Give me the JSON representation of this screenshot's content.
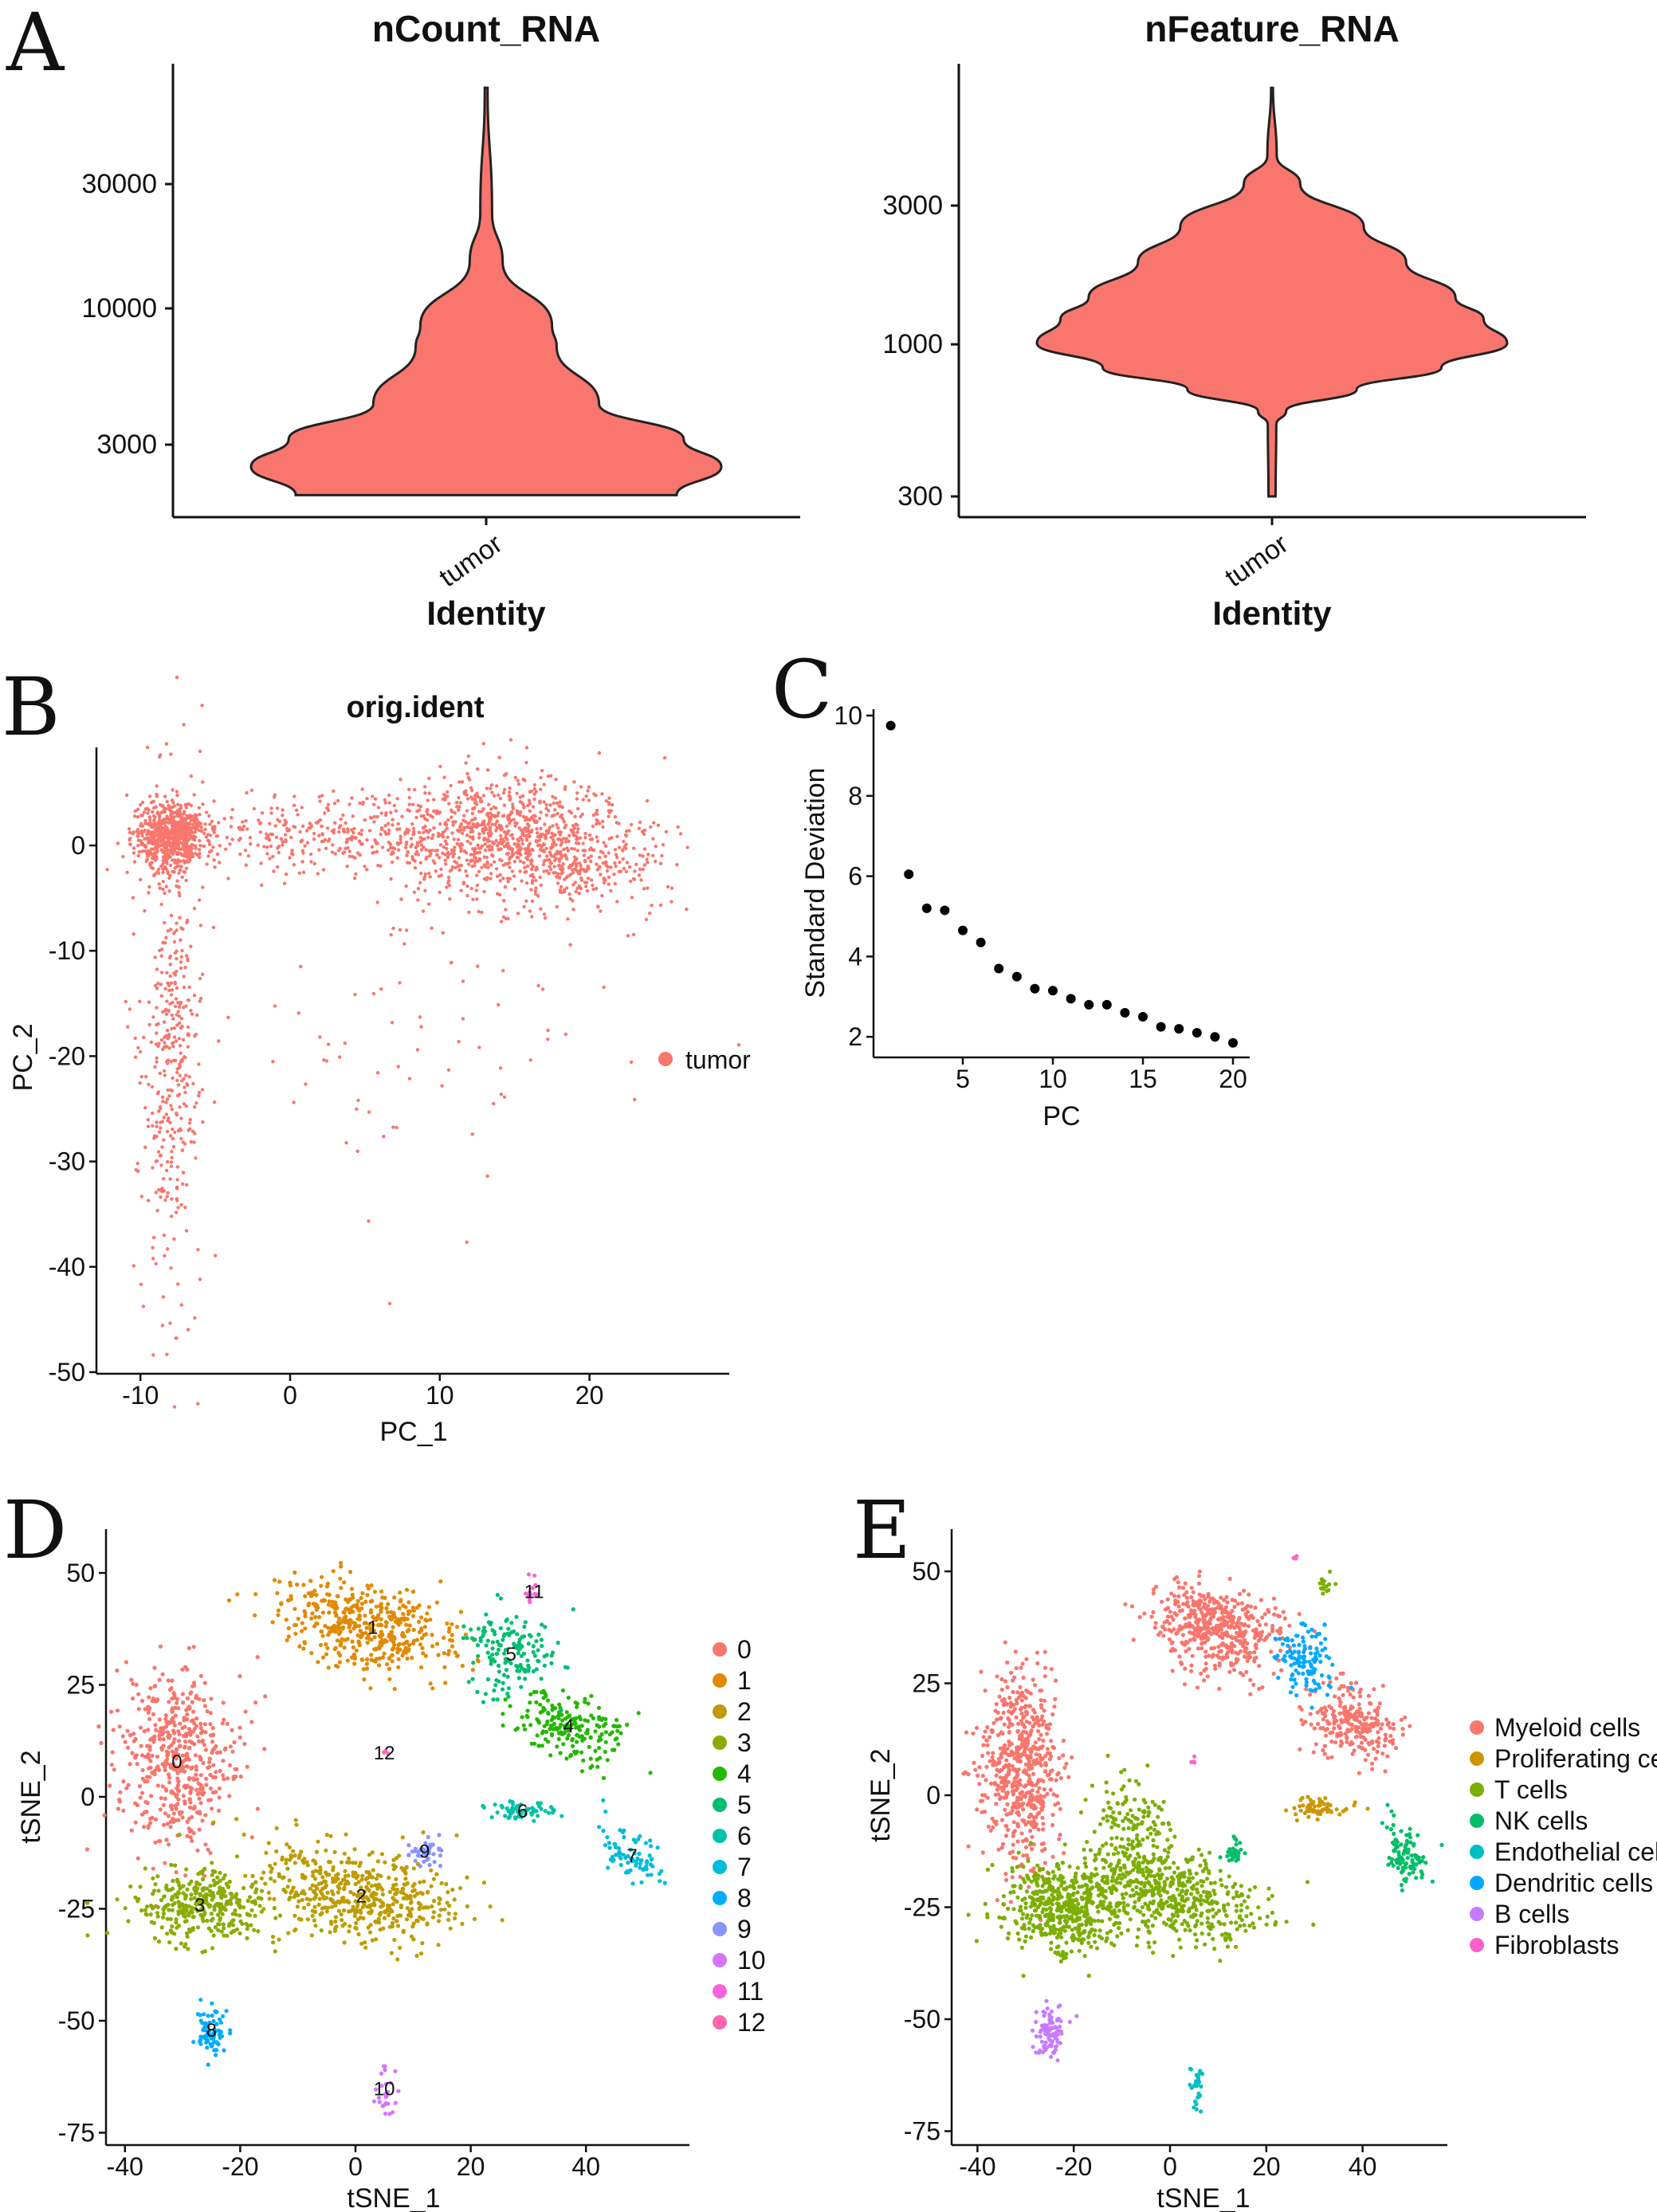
{
  "panels": [
    "A",
    "B",
    "C",
    "D",
    "E"
  ],
  "chart_data": [
    {
      "id": "A1",
      "type": "violin",
      "title": "nCount_RNA",
      "xlabel": "Identity",
      "categories": [
        "tumor"
      ],
      "yscale": "log",
      "yticks": [
        3000,
        10000,
        30000
      ],
      "ylim": [
        1920,
        70300
      ],
      "color": "#F8766D",
      "density": [
        [
          70300,
          0.006
        ],
        [
          23300,
          0.025
        ],
        [
          15100,
          0.07
        ],
        [
          8600,
          0.28
        ],
        [
          7100,
          0.3
        ],
        [
          4300,
          0.48
        ],
        [
          3150,
          0.84
        ],
        [
          2470,
          1.0
        ],
        [
          1920,
          0.81
        ]
      ]
    },
    {
      "id": "A2",
      "type": "violin",
      "title": "nFeature_RNA",
      "xlabel": "Identity",
      "categories": [
        "tumor"
      ],
      "yscale": "log",
      "yticks": [
        300,
        1000,
        3000
      ],
      "ylim": [
        300,
        7620
      ],
      "color": "#F8766D",
      "density": [
        [
          7620,
          0.004
        ],
        [
          4450,
          0.02
        ],
        [
          3560,
          0.12
        ],
        [
          2540,
          0.39
        ],
        [
          1920,
          0.57
        ],
        [
          1450,
          0.78
        ],
        [
          1220,
          0.9
        ],
        [
          1010,
          1.0
        ],
        [
          830,
          0.72
        ],
        [
          700,
          0.36
        ],
        [
          590,
          0.06
        ],
        [
          530,
          0.018
        ],
        [
          300,
          0.015
        ]
      ]
    },
    {
      "id": "B",
      "type": "scatter",
      "title": "orig.ident",
      "xlabel": "PC_1",
      "ylabel": "PC_2",
      "xticks": [
        -10,
        0,
        10,
        20
      ],
      "yticks": [
        0,
        -10,
        -20,
        -30,
        -40,
        -50
      ],
      "xlim": [
        -13,
        29.3
      ],
      "ylim": [
        -50.5,
        9.3
      ],
      "legend": {
        "position": "right",
        "entries": [
          {
            "name": "tumor",
            "color": "#F8766D"
          }
        ]
      },
      "clusters": [
        {
          "group": "tumor",
          "x": -8,
          "y": 1,
          "sx": 1.2,
          "sy": 1.6,
          "n": 700
        },
        {
          "group": "tumor",
          "x": 3,
          "y": 1,
          "sx": 5,
          "sy": 1.8,
          "n": 300
        },
        {
          "group": "tumor",
          "x": 14,
          "y": 1,
          "sx": 4,
          "sy": 3,
          "n": 900
        },
        {
          "group": "tumor",
          "x": 20,
          "y": -2,
          "sx": 3,
          "sy": 2,
          "n": 200
        },
        {
          "group": "tumor",
          "x": -8,
          "y": -20,
          "sx": 1,
          "sy": 12,
          "n": 400
        },
        {
          "group": "tumor",
          "x": 9,
          "y": -18,
          "sx": 7,
          "sy": 8,
          "n": 80
        }
      ]
    },
    {
      "id": "C",
      "type": "scatter",
      "xlabel": "PC",
      "ylabel": "Standard Deviation",
      "xticks": [
        5,
        10,
        15,
        20
      ],
      "yticks": [
        2,
        4,
        6,
        8,
        10
      ],
      "xlim": [
        0.1,
        20.5
      ],
      "ylim": [
        1.5,
        10.2
      ],
      "x": [
        1,
        2,
        3,
        4,
        5,
        6,
        7,
        8,
        9,
        10,
        11,
        12,
        13,
        14,
        15,
        16,
        17,
        18,
        19,
        20
      ],
      "y": [
        9.75,
        6.05,
        5.2,
        5.15,
        4.65,
        4.35,
        3.7,
        3.5,
        3.2,
        3.15,
        2.95,
        2.8,
        2.8,
        2.6,
        2.5,
        2.25,
        2.2,
        2.1,
        2.0,
        1.85
      ]
    },
    {
      "id": "D",
      "type": "scatter",
      "xlabel": "tSNE_1",
      "ylabel": "tSNE_2",
      "xticks": [
        -40,
        -20,
        0,
        20,
        40
      ],
      "yticks": [
        50,
        25,
        0,
        -25,
        -50,
        -75
      ],
      "xlim": [
        -43,
        58
      ],
      "ylim": [
        -77.8,
        59.8
      ],
      "legend": {
        "position": "right",
        "entries": [
          {
            "name": "0",
            "color": "#F8766D"
          },
          {
            "name": "1",
            "color": "#E18A00"
          },
          {
            "name": "2",
            "color": "#BE9C00"
          },
          {
            "name": "3",
            "color": "#8CAB00"
          },
          {
            "name": "4",
            "color": "#24B700"
          },
          {
            "name": "5",
            "color": "#00BE70"
          },
          {
            "name": "6",
            "color": "#00C1AB"
          },
          {
            "name": "7",
            "color": "#00BBDA"
          },
          {
            "name": "8",
            "color": "#00ACFC"
          },
          {
            "name": "9",
            "color": "#8B93FF"
          },
          {
            "name": "10",
            "color": "#D575FE"
          },
          {
            "name": "11",
            "color": "#F962DD"
          },
          {
            "name": "12",
            "color": "#FF65AC"
          }
        ]
      },
      "clusters": [
        {
          "group": "0",
          "x": -31,
          "y": 8,
          "sx": 5,
          "sy": 10,
          "rot": 0,
          "n": 500
        },
        {
          "group": "1",
          "x": 3,
          "y": 38,
          "sx": 8,
          "sy": 4.5,
          "rot": -22,
          "n": 450
        },
        {
          "group": "2",
          "x": 1,
          "y": -22,
          "sx": 9,
          "sy": 5,
          "rot": -18,
          "n": 500
        },
        {
          "group": "3",
          "x": -27,
          "y": -24,
          "sx": 6,
          "sy": 4,
          "rot": 0,
          "n": 350
        },
        {
          "group": "4",
          "x": 37,
          "y": 16,
          "sx": 5,
          "sy": 3.5,
          "rot": -30,
          "n": 200
        },
        {
          "group": "5",
          "x": 27,
          "y": 32,
          "sx": 4,
          "sy": 5,
          "rot": 0,
          "n": 150
        },
        {
          "group": "6",
          "x": 29,
          "y": -3,
          "sx": 3,
          "sy": 1,
          "rot": 0,
          "n": 60
        },
        {
          "group": "7",
          "x": 48,
          "y": -13,
          "sx": 2,
          "sy": 4,
          "rot": 30,
          "n": 80
        },
        {
          "group": "8",
          "x": -25,
          "y": -52,
          "sx": 1.5,
          "sy": 3,
          "rot": 0,
          "n": 80
        },
        {
          "group": "9",
          "x": 12,
          "y": -12,
          "sx": 1.5,
          "sy": 1.5,
          "rot": 0,
          "n": 40
        },
        {
          "group": "10",
          "x": 5,
          "y": -65,
          "sx": 1,
          "sy": 3,
          "rot": 0,
          "n": 25
        },
        {
          "group": "11",
          "x": 31,
          "y": 46,
          "sx": 1,
          "sy": 2,
          "rot": 0,
          "n": 15
        },
        {
          "group": "12",
          "x": 5,
          "y": 10,
          "sx": 0.5,
          "sy": 0.5,
          "rot": 0,
          "n": 4
        }
      ]
    },
    {
      "id": "E",
      "type": "scatter",
      "xlabel": "tSNE_1",
      "ylabel": "tSNE_2",
      "xticks": [
        -40,
        -20,
        0,
        20,
        40
      ],
      "yticks": [
        50,
        25,
        0,
        -25,
        -50,
        -75
      ],
      "xlim": [
        -45.3,
        57.6
      ],
      "ylim": [
        -77.8,
        59.8
      ],
      "legend": {
        "position": "right",
        "entries": [
          {
            "name": "Myeloid cells",
            "color": "#F8766D"
          },
          {
            "name": "Proliferating cells",
            "color": "#CD9600"
          },
          {
            "name": "T cells",
            "color": "#7CAE00"
          },
          {
            "name": "NK cells",
            "color": "#00BE67"
          },
          {
            "name": "Endothelial cells",
            "color": "#00BFC4"
          },
          {
            "name": "Dendritic cells",
            "color": "#00A9FF"
          },
          {
            "name": "B cells",
            "color": "#C77CFF"
          },
          {
            "name": "Fibroblasts",
            "color": "#FF61CC"
          }
        ]
      },
      "clusters": [
        {
          "group": "Myeloid cells",
          "x": -31,
          "y": 6,
          "sx": 4,
          "sy": 11,
          "rot": 0,
          "n": 600
        },
        {
          "group": "Myeloid cells",
          "x": 10,
          "y": 37,
          "sx": 7,
          "sy": 4.5,
          "rot": -22,
          "n": 500
        },
        {
          "group": "Myeloid cells",
          "x": 38,
          "y": 16,
          "sx": 5,
          "sy": 3.5,
          "rot": -30,
          "n": 250
        },
        {
          "group": "T cells",
          "x": -22,
          "y": -25,
          "sx": 6,
          "sy": 5,
          "rot": 0,
          "n": 500
        },
        {
          "group": "T cells",
          "x": 0,
          "y": -22,
          "sx": 9,
          "sy": 5,
          "rot": -15,
          "n": 500
        },
        {
          "group": "T cells",
          "x": -8,
          "y": -8,
          "sx": 4,
          "sy": 6,
          "rot": 0,
          "n": 150
        },
        {
          "group": "T cells",
          "x": 32,
          "y": 47,
          "sx": 0.8,
          "sy": 1.5,
          "rot": 0,
          "n": 15
        },
        {
          "group": "NK cells",
          "x": 49,
          "y": -14,
          "sx": 2,
          "sy": 4,
          "rot": 20,
          "n": 100
        },
        {
          "group": "NK cells",
          "x": 13,
          "y": -13,
          "sx": 1.2,
          "sy": 1.5,
          "rot": 0,
          "n": 30
        },
        {
          "group": "Endothelial cells",
          "x": 5.5,
          "y": -65,
          "sx": 0.8,
          "sy": 3,
          "rot": 0,
          "n": 30
        },
        {
          "group": "Dendritic cells",
          "x": 28,
          "y": 30,
          "sx": 3,
          "sy": 4,
          "rot": 0,
          "n": 120
        },
        {
          "group": "B cells",
          "x": -25,
          "y": -53,
          "sx": 1.5,
          "sy": 3,
          "rot": 0,
          "n": 100
        },
        {
          "group": "Fibroblasts",
          "x": 5,
          "y": 8,
          "sx": 0.3,
          "sy": 0.6,
          "rot": 0,
          "n": 4
        },
        {
          "group": "Fibroblasts",
          "x": 26,
          "y": 53,
          "sx": 0.6,
          "sy": 0.3,
          "rot": 0,
          "n": 4
        },
        {
          "group": "Proliferating cells",
          "x": 31,
          "y": -3,
          "sx": 3,
          "sy": 1,
          "rot": 0,
          "n": 60
        }
      ]
    }
  ]
}
